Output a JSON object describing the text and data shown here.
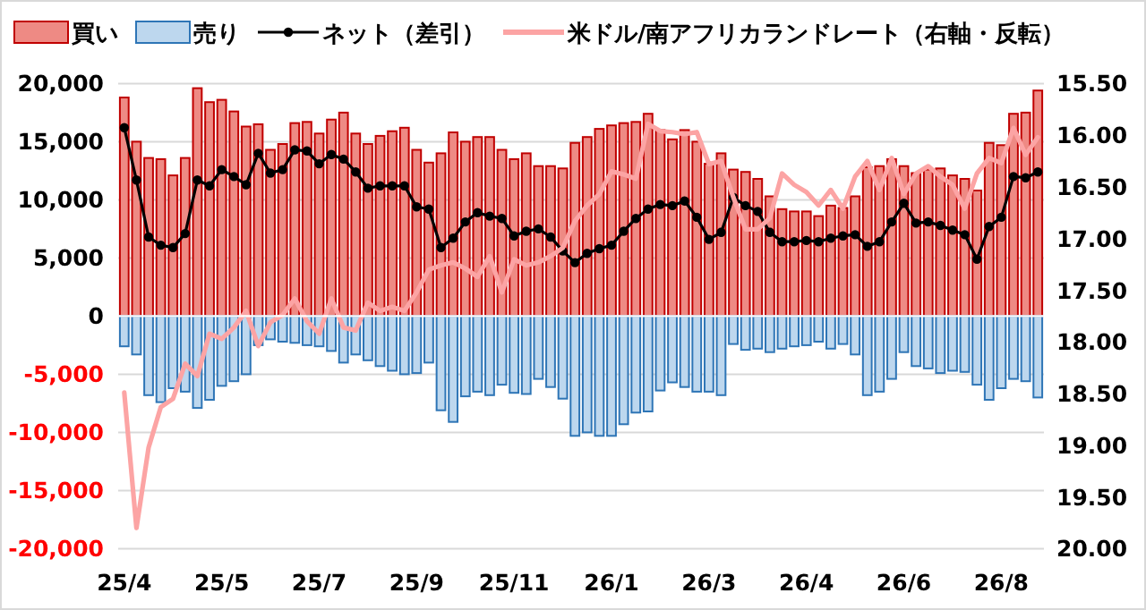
{
  "chart_data": {
    "type": "bar",
    "stacked": true,
    "categories": [
      "25/4",
      null,
      null,
      null,
      null,
      null,
      null,
      null,
      "25/5",
      null,
      null,
      null,
      null,
      null,
      null,
      null,
      "25/7",
      null,
      null,
      null,
      null,
      null,
      null,
      null,
      "25/9",
      null,
      null,
      null,
      null,
      null,
      null,
      null,
      "25/11",
      null,
      null,
      null,
      null,
      null,
      null,
      null,
      "26/1",
      null,
      null,
      null,
      null,
      null,
      null,
      null,
      "26/3",
      null,
      null,
      null,
      null,
      null,
      null,
      null,
      "26/4",
      null,
      null,
      null,
      null,
      null,
      null,
      null,
      "26/6",
      null,
      null,
      null,
      null,
      null,
      null,
      null,
      "26/8",
      null,
      null,
      null
    ],
    "series": [
      {
        "name": "買い",
        "color": "#ee8a84",
        "values": [
          18800,
          15000,
          13600,
          13500,
          12100,
          13600,
          19600,
          18400,
          18600,
          17600,
          16300,
          16500,
          14300,
          14800,
          16600,
          16700,
          15700,
          16900,
          17500,
          15700,
          14800,
          15500,
          15900,
          16200,
          14300,
          13200,
          14000,
          15800,
          15000,
          15400,
          15400,
          14300,
          13500,
          14000,
          12900,
          12900,
          12700,
          14900,
          15400,
          16100,
          16400,
          16600,
          16700,
          17400,
          16000,
          15200,
          16000,
          15000,
          13100,
          14000,
          12600,
          12400,
          11800,
          10300,
          9200,
          9000,
          9000,
          8600,
          9500,
          9300,
          10300,
          12800,
          12900,
          13500,
          12900,
          12300,
          12600,
          12700,
          12100,
          11800,
          10800,
          14900,
          14700,
          17400,
          17500,
          19400
        ]
      },
      {
        "name": "売り",
        "color": "#bdd7ee",
        "values": [
          -2600,
          -3300,
          -6800,
          -7400,
          -6200,
          -6500,
          -7900,
          -7200,
          -6000,
          -5600,
          -5000,
          -2500,
          -2000,
          -2200,
          -2300,
          -2500,
          -2600,
          -3000,
          -4000,
          -3300,
          -3800,
          -4300,
          -4700,
          -5000,
          -4900,
          -4000,
          -8100,
          -9100,
          -6900,
          -6500,
          -6800,
          -5900,
          -6600,
          -6700,
          -5400,
          -6100,
          -7100,
          -10300,
          -10000,
          -10300,
          -10300,
          -9300,
          -8300,
          -8200,
          -6400,
          -5700,
          -6100,
          -6500,
          -6500,
          -6800,
          -2400,
          -2900,
          -2800,
          -3100,
          -2800,
          -2600,
          -2500,
          -2200,
          -2800,
          -2400,
          -3300,
          -6800,
          -6500,
          -5400,
          -3100,
          -4300,
          -4500,
          -4900,
          -4700,
          -4800,
          -5900,
          -7200,
          -6200,
          -5400,
          -5600,
          -7000
        ]
      },
      {
        "name": "ネット（差引）",
        "type": "line",
        "color": "#000000",
        "marker": "circle",
        "values": [
          16200,
          11700,
          6800,
          6100,
          5900,
          7100,
          11700,
          11200,
          12600,
          12000,
          11300,
          14000,
          12300,
          12600,
          14300,
          14200,
          13100,
          13900,
          13500,
          12400,
          11000,
          11200,
          11200,
          11200,
          9400,
          9200,
          5900,
          6700,
          8100,
          8900,
          8600,
          8400,
          6900,
          7300,
          7500,
          6800,
          5600,
          4600,
          5400,
          5800,
          6100,
          7300,
          8400,
          9200,
          9600,
          9500,
          9900,
          8500,
          6600,
          7200,
          10200,
          9500,
          9000,
          7200,
          6400,
          6400,
          6500,
          6400,
          6700,
          6900,
          7000,
          6000,
          6400,
          8100,
          9700,
          8000,
          8100,
          7800,
          7400,
          7000,
          4900,
          7700,
          8500,
          12000,
          11900,
          12400
        ]
      },
      {
        "name": "米ドル/南アフリカランドレート（右軸・反転）",
        "type": "line",
        "axis": "y2",
        "color": "#fca4a4",
        "values": [
          18.49,
          19.8,
          19.02,
          18.63,
          18.55,
          18.21,
          18.33,
          17.92,
          17.97,
          17.86,
          17.7,
          18.04,
          17.81,
          17.74,
          17.58,
          17.8,
          17.92,
          17.58,
          17.86,
          17.89,
          17.62,
          17.7,
          17.66,
          17.7,
          17.52,
          17.3,
          17.26,
          17.23,
          17.29,
          17.37,
          17.17,
          17.52,
          17.2,
          17.26,
          17.23,
          17.17,
          17.09,
          16.83,
          16.68,
          16.57,
          16.35,
          16.38,
          16.42,
          15.89,
          15.96,
          15.97,
          15.99,
          15.97,
          16.28,
          16.25,
          16.6,
          16.91,
          16.91,
          16.8,
          16.37,
          16.48,
          16.55,
          16.68,
          16.53,
          16.71,
          16.4,
          16.25,
          16.53,
          16.22,
          16.57,
          16.37,
          16.3,
          16.4,
          16.48,
          16.71,
          16.37,
          16.22,
          16.27,
          15.93,
          16.19,
          16.02
        ]
      }
    ],
    "ylim": [
      -20000,
      20000
    ],
    "yticks": [
      {
        "value": -20000,
        "label": "-20,000"
      },
      {
        "value": -15000,
        "label": "-15,000"
      },
      {
        "value": -10000,
        "label": "-10,000"
      },
      {
        "value": -5000,
        "label": "-5,000"
      },
      0,
      {
        "value": 5000,
        "label": "5,000"
      },
      {
        "value": 10000,
        "label": "10,000"
      },
      {
        "value": 15000,
        "label": "15,000"
      },
      {
        "value": 20000,
        "label": "20,000"
      }
    ],
    "y2lim": [
      20.0,
      15.5
    ],
    "y2ticks": [
      {
        "value": 15.5,
        "label": "15.50"
      },
      {
        "value": 16,
        "label": "16.00"
      },
      {
        "value": 16.5,
        "label": "16.50"
      },
      {
        "value": 17,
        "label": "17.00"
      },
      {
        "value": 17.5,
        "label": "17.50"
      },
      {
        "value": 18,
        "label": "18.00"
      },
      {
        "value": 18.5,
        "label": "18.50"
      },
      {
        "value": 19,
        "label": "19.00"
      },
      {
        "value": 19.5,
        "label": "19.50"
      },
      {
        "value": 20,
        "label": "20.00"
      }
    ],
    "grid": "y",
    "legend": "top"
  }
}
